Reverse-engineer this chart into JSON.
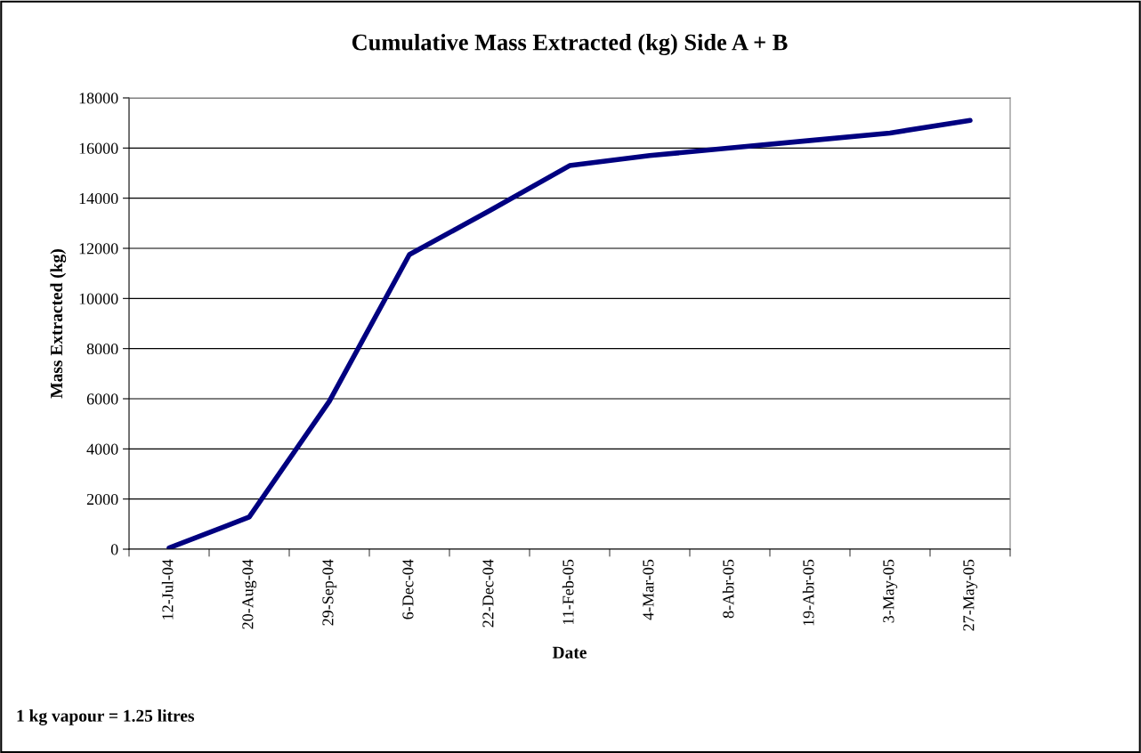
{
  "chart_data": {
    "type": "line",
    "title": "Cumulative Mass Extracted (kg) Side A + B",
    "xlabel": "Date",
    "ylabel": "Mass Extracted (kg)",
    "categories": [
      "12-Jul-04",
      "20-Aug-04",
      "29-Sep-04",
      "6-Dec-04",
      "22-Dec-04",
      "11-Feb-05",
      "4-Mar-05",
      "8-Abr-05",
      "19-Abr-05",
      "3-May-05",
      "27-May-05"
    ],
    "series": [
      {
        "color": "#000080",
        "values": [
          50,
          1280,
          5900,
          11750,
          13500,
          15300,
          15700,
          16000,
          16300,
          16600,
          17100
        ]
      }
    ],
    "ylim": [
      0,
      18000
    ],
    "yticks": [
      0,
      2000,
      4000,
      6000,
      8000,
      10000,
      12000,
      14000,
      16000,
      18000
    ],
    "grid": "y",
    "marker": "none",
    "line_style": "solid",
    "annotations": [
      "1 kg vapour = 1.25 litres"
    ]
  }
}
